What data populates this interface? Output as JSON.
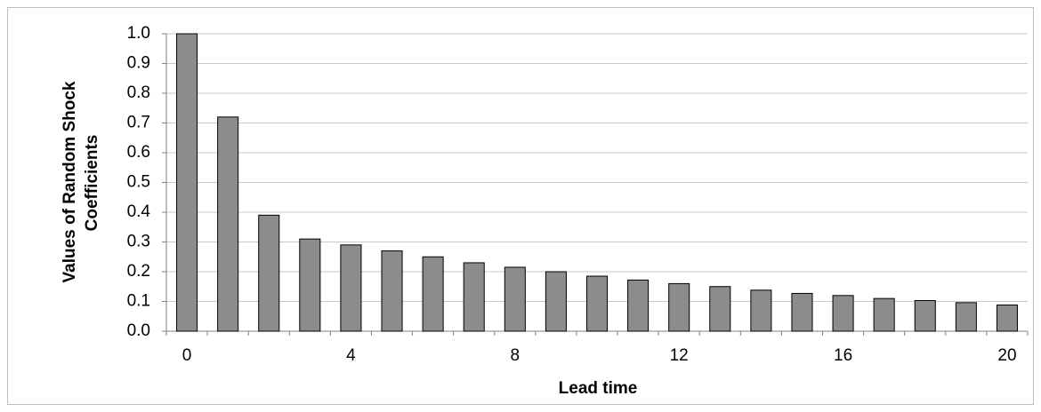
{
  "chart_data": {
    "type": "bar",
    "xlabel": "Lead time",
    "ylabel": [
      "Values of Random Shock",
      "Coefficients"
    ],
    "categories": [
      "0",
      null,
      null,
      null,
      "4",
      null,
      null,
      null,
      "8",
      null,
      null,
      null,
      "12",
      null,
      null,
      null,
      "16",
      null,
      null,
      null,
      "20"
    ],
    "values": [
      1.0,
      0.72,
      0.39,
      0.31,
      0.29,
      0.27,
      0.25,
      0.23,
      0.215,
      0.2,
      0.185,
      0.172,
      0.16,
      0.15,
      0.138,
      0.127,
      0.12,
      0.11,
      0.103,
      0.096,
      0.088
    ],
    "color": "#8c8c8c",
    "ylim": [
      0,
      1
    ],
    "yticks": [
      {
        "value": 0,
        "label": "0.0"
      },
      {
        "value": 0.1,
        "label": "0.1"
      },
      {
        "value": 0.2,
        "label": "0.2"
      },
      {
        "value": 0.3,
        "label": "0.3"
      },
      {
        "value": 0.4,
        "label": "0.4"
      },
      {
        "value": 0.5,
        "label": "0.5"
      },
      {
        "value": 0.6,
        "label": "0.6"
      },
      {
        "value": 0.7,
        "label": "0.7"
      },
      {
        "value": 0.8,
        "label": "0.8"
      },
      {
        "value": 0.9,
        "label": "0.9"
      },
      {
        "value": 1,
        "label": "1.0"
      }
    ],
    "grid": true
  }
}
